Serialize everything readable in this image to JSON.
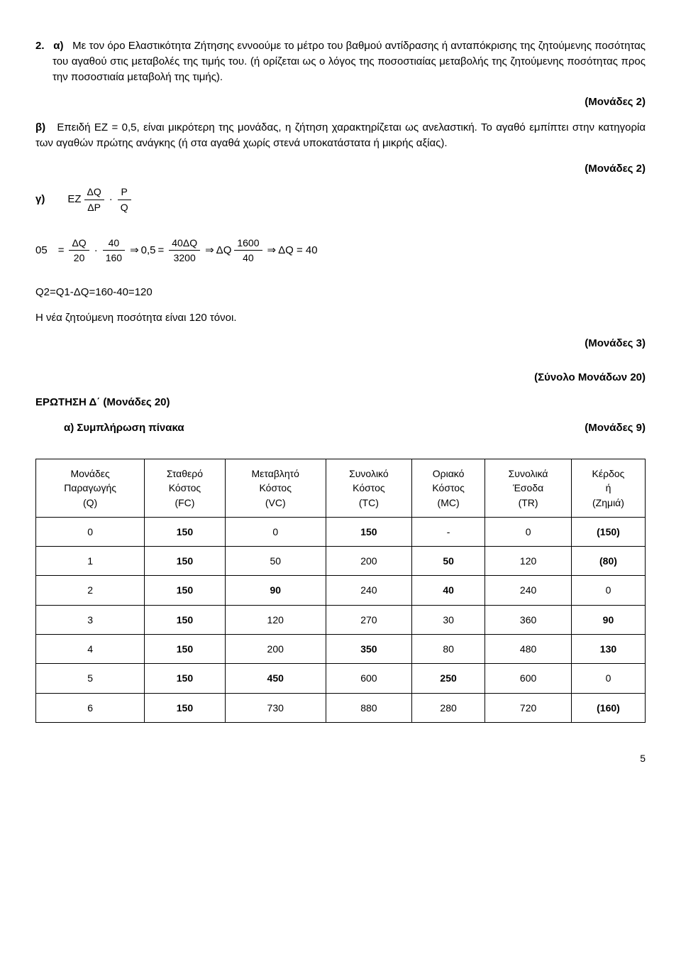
{
  "q2": {
    "lead": "2.",
    "a_label": "α)",
    "a_text": "Με τον όρο Ελαστικότητα Ζήτησης εννοούμε το μέτρο του βαθμού αντίδρασης ή ανταπόκρισης της ζητούμενης ποσότητας του αγαθού στις μεταβολές της τιμής του. (ή ορίζεται ως ο λόγος της ποσοστιαίας μεταβολής της ζητούμενης ποσότητας προς την ποσοστιαία μεταβολή της τιμής).",
    "a_points": "(Μονάδες 2)",
    "b_label": "β)",
    "b_text": "Επειδή ΕΖ = 0,5, είναι μικρότερη της μονάδας, η ζήτηση χαρακτηρίζεται ως ανελαστική. Το αγαθό εμπίπτει στην κατηγορία των αγαθών πρώτης ανάγκης (ή στα αγαθά χωρίς στενά υποκατάστατα ή μικρής αξίας).",
    "b_points": "(Μονάδες 2)",
    "c_label": "γ)",
    "formula_EZ": "EZ",
    "f1_num1": "ΔQ",
    "f1_den1": "ΔP",
    "f1_num2": "P",
    "f1_den2": "Q",
    "line2_lead": "05",
    "l2_num1": "ΔQ",
    "l2_den1": "20",
    "l2_num2": "40",
    "l2_den2": "160",
    "l2_val": "0,5",
    "l2_num3": "40ΔQ",
    "l2_den3": "3200",
    "l2_num4": "1600",
    "l2_den4": "40",
    "l2_dq": "ΔQ",
    "l2_res": "ΔQ = 40",
    "q2line": "Q2=Q1-ΔQ=160-40=120",
    "q2_concl": "Η νέα ζητούμενη ποσότητα είναι 120 τόνοι.",
    "c_points": "(Μονάδες 3)",
    "total_points": "(Σύνολο Μονάδων 20)"
  },
  "qD": {
    "title": "ΕΡΩΤΗΣΗ Δ΄ (Μονάδες 20)",
    "a_label": "α) Συμπλήρωση πίνακα",
    "a_points": "(Μονάδες 9)"
  },
  "table": {
    "headers": [
      "Μονάδες\nΠαραγωγής\n(Q)",
      "Σταθερό\nΚόστος\n(FC)",
      "Μεταβλητό\nΚόστος\n(VC)",
      "Συνολικό\nΚόστος\n(TC)",
      "Οριακό\nΚόστος\n(MC)",
      "Συνολικά\nΈσοδα\n(TR)",
      "Κέρδος\nή\n(Ζημιά)"
    ],
    "rows": [
      [
        "0",
        "150",
        "0",
        "150",
        "-",
        "0",
        "(150)"
      ],
      [
        "1",
        "150",
        "50",
        "200",
        "50",
        "120",
        "(80)"
      ],
      [
        "2",
        "150",
        "90",
        "240",
        "40",
        "240",
        "0"
      ],
      [
        "3",
        "150",
        "120",
        "270",
        "30",
        "360",
        "90"
      ],
      [
        "4",
        "150",
        "200",
        "350",
        "80",
        "480",
        "130"
      ],
      [
        "5",
        "150",
        "450",
        "600",
        "250",
        "600",
        "0"
      ],
      [
        "6",
        "150",
        "730",
        "880",
        "280",
        "720",
        "(160)"
      ]
    ],
    "bold_cols_by_row": {
      "0": [
        1,
        3,
        6
      ],
      "1": [
        1,
        4,
        6
      ],
      "2": [
        1,
        2,
        4
      ],
      "3": [
        1,
        6
      ],
      "4": [
        1,
        3,
        6
      ],
      "5": [
        1,
        2,
        4
      ],
      "6": [
        1,
        6
      ]
    }
  },
  "page_number": "5"
}
